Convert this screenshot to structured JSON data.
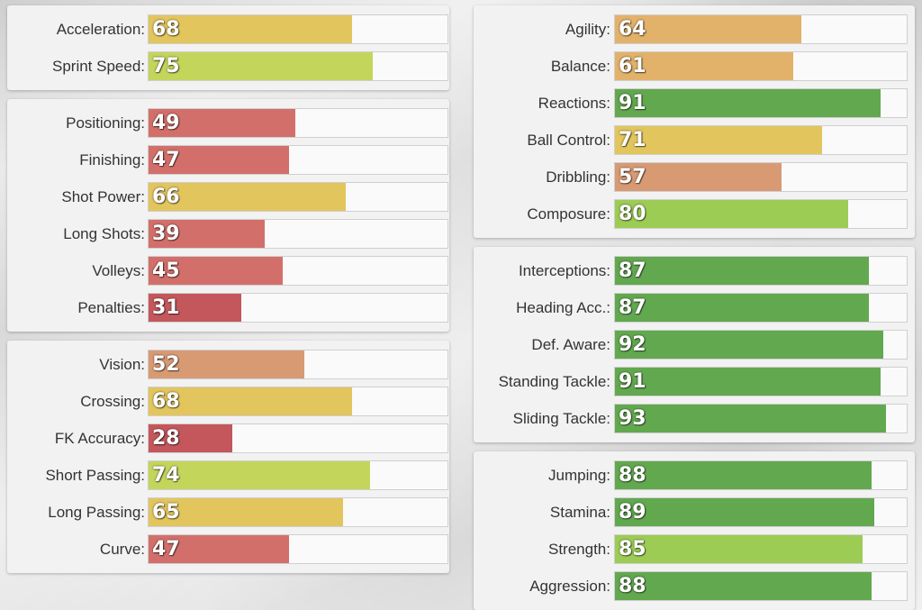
{
  "colors": {
    "red": "#d36f6a",
    "darkred": "#c4575c",
    "salmon": "#d89a73",
    "orange": "#e2b16a",
    "yellow": "#e2c55d",
    "lime": "#c4d55c",
    "lightgreen": "#9ccc54",
    "green": "#62a84f"
  },
  "panels": [
    {
      "id": "pace",
      "stats": [
        {
          "label": "Acceleration:",
          "value": 68,
          "color": "yellow"
        },
        {
          "label": "Sprint Speed:",
          "value": 75,
          "color": "lime"
        }
      ]
    },
    {
      "id": "shooting",
      "stats": [
        {
          "label": "Positioning:",
          "value": 49,
          "color": "red"
        },
        {
          "label": "Finishing:",
          "value": 47,
          "color": "red"
        },
        {
          "label": "Shot Power:",
          "value": 66,
          "color": "yellow"
        },
        {
          "label": "Long Shots:",
          "value": 39,
          "color": "red"
        },
        {
          "label": "Volleys:",
          "value": 45,
          "color": "red"
        },
        {
          "label": "Penalties:",
          "value": 31,
          "color": "darkred"
        }
      ]
    },
    {
      "id": "passing",
      "stats": [
        {
          "label": "Vision:",
          "value": 52,
          "color": "salmon"
        },
        {
          "label": "Crossing:",
          "value": 68,
          "color": "yellow"
        },
        {
          "label": "FK Accuracy:",
          "value": 28,
          "color": "darkred"
        },
        {
          "label": "Short Passing:",
          "value": 74,
          "color": "lime"
        },
        {
          "label": "Long Passing:",
          "value": 65,
          "color": "yellow"
        },
        {
          "label": "Curve:",
          "value": 47,
          "color": "red"
        }
      ]
    },
    {
      "id": "dribbling",
      "stats": [
        {
          "label": "Agility:",
          "value": 64,
          "color": "orange"
        },
        {
          "label": "Balance:",
          "value": 61,
          "color": "orange"
        },
        {
          "label": "Reactions:",
          "value": 91,
          "color": "green"
        },
        {
          "label": "Ball Control:",
          "value": 71,
          "color": "yellow"
        },
        {
          "label": "Dribbling:",
          "value": 57,
          "color": "salmon"
        },
        {
          "label": "Composure:",
          "value": 80,
          "color": "lightgreen"
        }
      ]
    },
    {
      "id": "defending",
      "stats": [
        {
          "label": "Interceptions:",
          "value": 87,
          "color": "green"
        },
        {
          "label": "Heading Acc.:",
          "value": 87,
          "color": "green"
        },
        {
          "label": "Def. Aware:",
          "value": 92,
          "color": "green"
        },
        {
          "label": "Standing Tackle:",
          "value": 91,
          "color": "green"
        },
        {
          "label": "Sliding Tackle:",
          "value": 93,
          "color": "green"
        }
      ]
    },
    {
      "id": "physical",
      "stats": [
        {
          "label": "Jumping:",
          "value": 88,
          "color": "green"
        },
        {
          "label": "Stamina:",
          "value": 89,
          "color": "green"
        },
        {
          "label": "Strength:",
          "value": 85,
          "color": "lightgreen"
        },
        {
          "label": "Aggression:",
          "value": 88,
          "color": "green"
        }
      ]
    }
  ]
}
